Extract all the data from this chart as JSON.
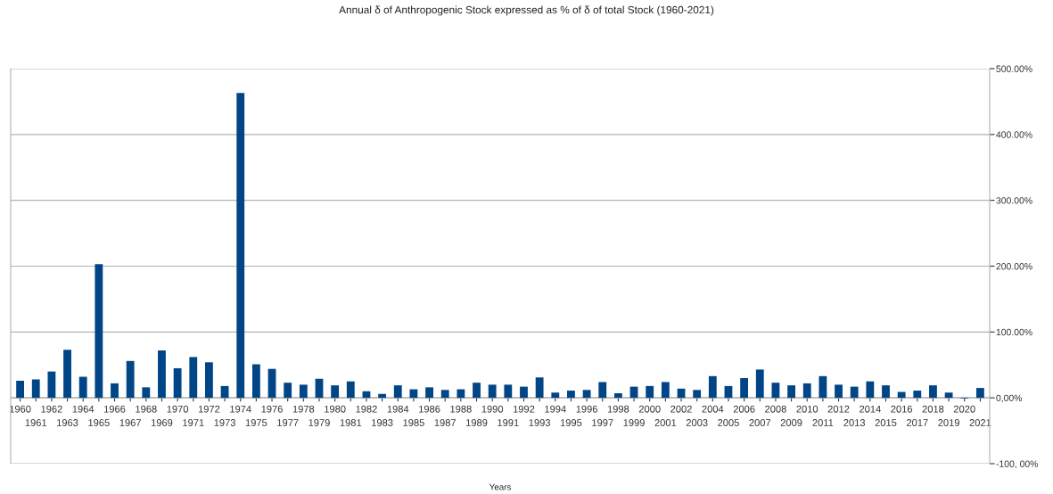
{
  "chart_data": {
    "type": "bar",
    "title": "Annual δ of Anthropogenic Stock expressed as % of δ of total Stock (1960-2021)",
    "xlabel": "Years",
    "categories": [
      "1960",
      "1961",
      "1962",
      "1963",
      "1964",
      "1965",
      "1966",
      "1967",
      "1968",
      "1969",
      "1970",
      "1971",
      "1972",
      "1973",
      "1974",
      "1975",
      "1976",
      "1977",
      "1978",
      "1979",
      "1980",
      "1981",
      "1982",
      "1983",
      "1984",
      "1985",
      "1986",
      "1987",
      "1988",
      "1989",
      "1990",
      "1991",
      "1992",
      "1993",
      "1994",
      "1995",
      "1996",
      "1997",
      "1998",
      "1999",
      "2000",
      "2001",
      "2002",
      "2003",
      "2004",
      "2005",
      "2006",
      "2007",
      "2008",
      "2009",
      "2010",
      "2011",
      "2012",
      "2013",
      "2014",
      "2015",
      "2016",
      "2017",
      "2018",
      "2019",
      "2020",
      "2021"
    ],
    "values": [
      26,
      28,
      40,
      73,
      32,
      203,
      22,
      56,
      16,
      72,
      45,
      62,
      54,
      18,
      463,
      51,
      44,
      23,
      20,
      29,
      19,
      25,
      10,
      6,
      19,
      13,
      16,
      12,
      13,
      23,
      20,
      20,
      17,
      31,
      8,
      11,
      12,
      24,
      7,
      17,
      18,
      24,
      14,
      12,
      33,
      18,
      30,
      43,
      23,
      19,
      22,
      33,
      20,
      17,
      25,
      19,
      9,
      11,
      19,
      8,
      -1,
      15
    ],
    "color": "#004586",
    "ylim": [
      -100,
      500
    ],
    "yticks": [
      {
        "value": -100,
        "label": "-100, 00%"
      },
      {
        "value": 0,
        "label": "0,00%"
      },
      {
        "value": 100,
        "label": "100.00%"
      },
      {
        "value": 200,
        "label": "200.00%"
      },
      {
        "value": 300,
        "label": "300.00%"
      },
      {
        "value": 400,
        "label": "400.00%"
      },
      {
        "value": 500,
        "label": "500.00%"
      }
    ],
    "grid": "y"
  }
}
